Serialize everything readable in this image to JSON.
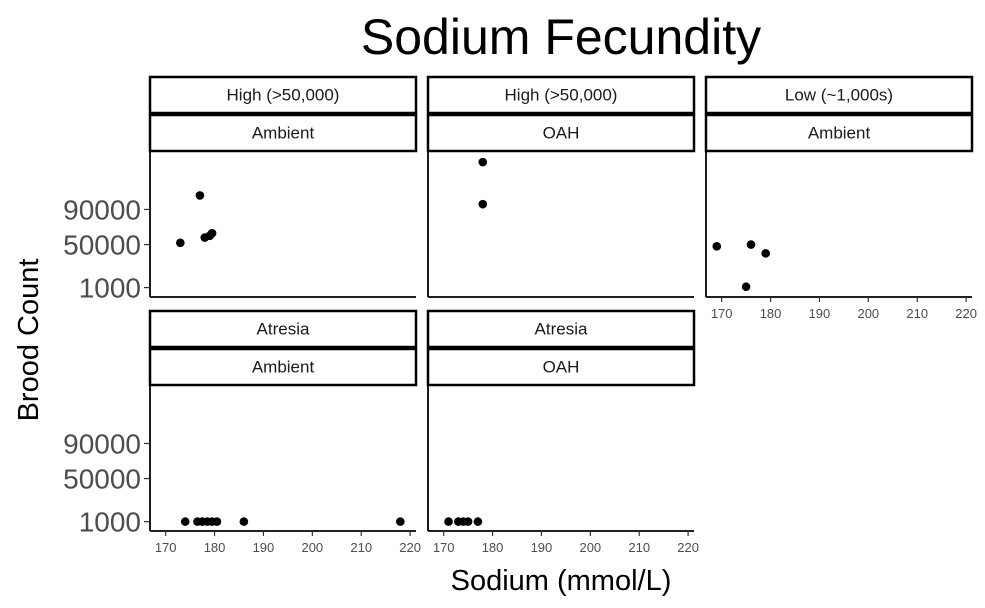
{
  "chart_data": {
    "type": "scatter",
    "title": "Sodium Fecundity",
    "xlabel": "Sodium (mmol/L)",
    "ylabel": "Brood Count",
    "xlim": [
      167,
      221
    ],
    "ylim": [
      -4000,
      152000
    ],
    "x_ticks": [
      "170",
      "180",
      "190",
      "200",
      "210",
      "220"
    ],
    "y_ticks": [
      "1000",
      "50000",
      "90000"
    ],
    "grid": false,
    "point_color": "#000000",
    "panels": [
      {
        "strip": [
          "High (>50,000)",
          "Ambient"
        ],
        "points": [
          {
            "x": 173,
            "y": 52000
          },
          {
            "x": 177,
            "y": 106000
          },
          {
            "x": 178,
            "y": 58000
          },
          {
            "x": 179,
            "y": 60000
          },
          {
            "x": 179.5,
            "y": 63000
          }
        ]
      },
      {
        "strip": [
          "High (>50,000)",
          "OAH"
        ],
        "points": [
          {
            "x": 178,
            "y": 144000
          },
          {
            "x": 178,
            "y": 96000
          }
        ]
      },
      {
        "strip": [
          "Low (~1,000s)",
          "Ambient"
        ],
        "points": [
          {
            "x": 169,
            "y": 48000
          },
          {
            "x": 176,
            "y": 50000
          },
          {
            "x": 179,
            "y": 40000
          },
          {
            "x": 175,
            "y": 2000
          }
        ]
      },
      {
        "strip": [
          "Atresia",
          "Ambient"
        ],
        "points": [
          {
            "x": 174,
            "y": 1000
          },
          {
            "x": 176.5,
            "y": 1000
          },
          {
            "x": 177.5,
            "y": 1000
          },
          {
            "x": 178.5,
            "y": 1000
          },
          {
            "x": 179.5,
            "y": 1000
          },
          {
            "x": 180.5,
            "y": 1000
          },
          {
            "x": 186,
            "y": 1000
          },
          {
            "x": 218,
            "y": 1000
          }
        ]
      },
      {
        "strip": [
          "Atresia",
          "OAH"
        ],
        "points": [
          {
            "x": 171,
            "y": 1000
          },
          {
            "x": 173,
            "y": 1000
          },
          {
            "x": 174,
            "y": 1000
          },
          {
            "x": 175,
            "y": 1000
          },
          {
            "x": 177,
            "y": 1000
          }
        ]
      }
    ]
  }
}
